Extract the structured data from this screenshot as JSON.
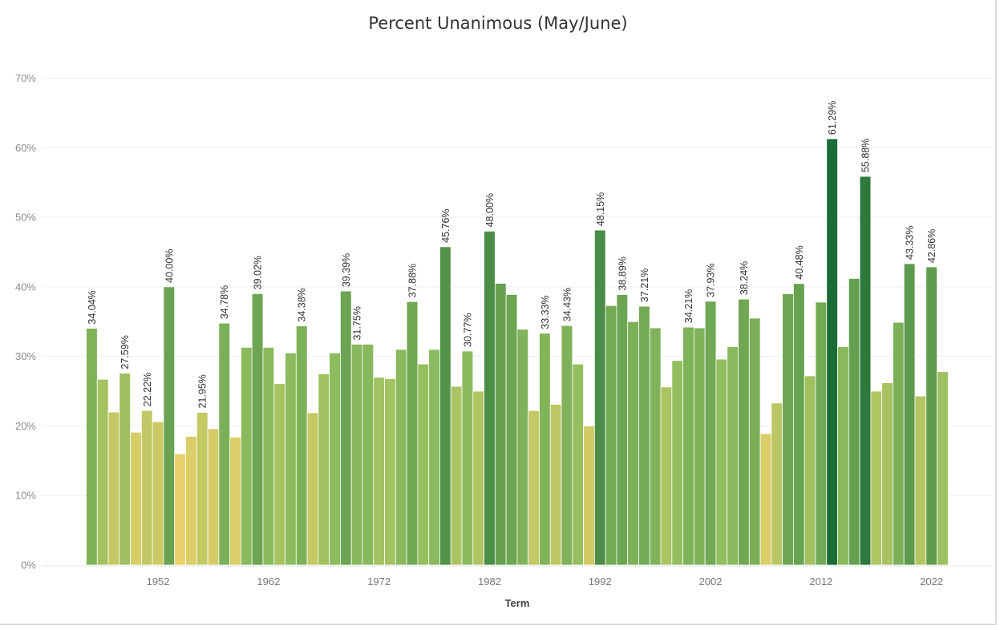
{
  "chart_data": {
    "type": "bar",
    "title": "Percent Unanimous (May/June)",
    "xlabel": "Term",
    "ylabel": "",
    "ylim": [
      0,
      70
    ],
    "y_ticks": [
      "0%",
      "10%",
      "20%",
      "30%",
      "40%",
      "50%",
      "60%",
      "70%"
    ],
    "x_ticks": [
      "1952",
      "1962",
      "1972",
      "1982",
      "1992",
      "2002",
      "2012",
      "2022"
    ],
    "x": [
      1946,
      1947,
      1948,
      1949,
      1950,
      1951,
      1952,
      1953,
      1954,
      1955,
      1956,
      1957,
      1958,
      1959,
      1960,
      1961,
      1962,
      1963,
      1964,
      1965,
      1966,
      1967,
      1968,
      1969,
      1970,
      1971,
      1972,
      1973,
      1974,
      1975,
      1976,
      1977,
      1978,
      1979,
      1980,
      1981,
      1982,
      1983,
      1984,
      1985,
      1986,
      1987,
      1988,
      1989,
      1990,
      1991,
      1992,
      1993,
      1994,
      1995,
      1996,
      1997,
      1998,
      1999,
      2000,
      2001,
      2002,
      2003,
      2004,
      2005,
      2006,
      2007,
      2008,
      2009,
      2010,
      2011,
      2012,
      2013,
      2014,
      2015,
      2016,
      2017,
      2018,
      2019,
      2020,
      2021,
      2022,
      2023
    ],
    "values": [
      34.04,
      26.7,
      22.0,
      27.59,
      19.1,
      22.22,
      20.6,
      40.0,
      16.0,
      18.5,
      21.95,
      19.6,
      34.78,
      18.4,
      31.3,
      39.02,
      31.3,
      26.1,
      30.5,
      34.38,
      21.9,
      27.5,
      30.5,
      39.39,
      31.75,
      31.75,
      27.0,
      26.8,
      31.0,
      37.88,
      28.9,
      31.0,
      45.76,
      25.7,
      30.77,
      25.0,
      48.0,
      40.5,
      38.9,
      33.9,
      22.2,
      33.33,
      23.1,
      34.43,
      28.9,
      20.0,
      48.15,
      37.3,
      38.89,
      35.0,
      37.21,
      34.1,
      25.6,
      29.4,
      34.21,
      34.1,
      37.93,
      29.6,
      31.4,
      38.24,
      35.5,
      18.9,
      23.3,
      39.0,
      40.48,
      27.2,
      37.8,
      61.29,
      31.4,
      41.2,
      55.88,
      25.0,
      26.2,
      34.9,
      43.33,
      24.3,
      42.86,
      27.8
    ],
    "data_labels": [
      {
        "index": 0,
        "text": "34.04%"
      },
      {
        "index": 3,
        "text": "27.59%"
      },
      {
        "index": 5,
        "text": "22.22%"
      },
      {
        "index": 7,
        "text": "40.00%"
      },
      {
        "index": 10,
        "text": "21.95%"
      },
      {
        "index": 12,
        "text": "34.78%"
      },
      {
        "index": 15,
        "text": "39.02%"
      },
      {
        "index": 19,
        "text": "34.38%"
      },
      {
        "index": 23,
        "text": "39.39%"
      },
      {
        "index": 24,
        "text": "31.75%"
      },
      {
        "index": 29,
        "text": "37.88%"
      },
      {
        "index": 32,
        "text": "45.76%"
      },
      {
        "index": 34,
        "text": "30.77%"
      },
      {
        "index": 36,
        "text": "48.00%"
      },
      {
        "index": 41,
        "text": "33.33%"
      },
      {
        "index": 43,
        "text": "34.43%"
      },
      {
        "index": 46,
        "text": "48.15%"
      },
      {
        "index": 48,
        "text": "38.89%"
      },
      {
        "index": 50,
        "text": "37.21%"
      },
      {
        "index": 54,
        "text": "34.21%"
      },
      {
        "index": 56,
        "text": "37.93%"
      },
      {
        "index": 59,
        "text": "38.24%"
      },
      {
        "index": 64,
        "text": "40.48%"
      },
      {
        "index": 67,
        "text": "61.29%"
      },
      {
        "index": 70,
        "text": "55.88%"
      },
      {
        "index": 74,
        "text": "43.33%"
      },
      {
        "index": 76,
        "text": "42.86%"
      }
    ],
    "color_scale": {
      "low_value": 16,
      "low_color": "#ecd16a",
      "mid_value": 30,
      "mid_color": "#8ebd5e",
      "high_value": 61.29,
      "high_color": "#1a6b35"
    },
    "grid": true
  }
}
